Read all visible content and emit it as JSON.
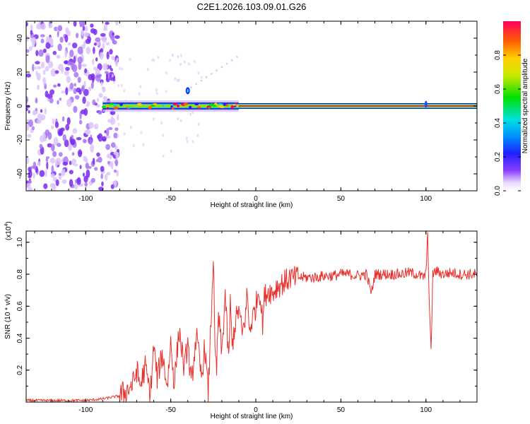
{
  "title": "C2E1.2026.103.09.01.G26",
  "chart_data": [
    {
      "type": "heatmap",
      "xlabel": "Height of straight line (km)",
      "ylabel": "Frequency (Hz)",
      "xlim": [
        -135,
        130
      ],
      "ylim": [
        -50,
        50
      ],
      "xticks": [
        -100,
        -50,
        0,
        50,
        100
      ],
      "yticks": [
        -40,
        -20,
        0,
        20,
        40
      ],
      "noise_region_x": [
        -135,
        -85
      ],
      "signal_line_x": [
        -90,
        130
      ],
      "signal_line_freq": 0,
      "colorbar": {
        "label": "Normalized spectral amplitude",
        "range": [
          0,
          1
        ],
        "ticks": [
          "0.0",
          "0.2",
          "0.4",
          "0.6",
          "0.8"
        ]
      }
    },
    {
      "type": "line",
      "xlabel": "Height of straight line (km)",
      "ylabel": "SNR (10 * v/v)",
      "yscale_label": "(x10",
      "yscale_exp": "4",
      "xlim": [
        -135,
        130
      ],
      "ylim": [
        0,
        1.07
      ],
      "xticks": [
        -100,
        -50,
        0,
        50,
        100
      ],
      "yticks": [
        "0.2",
        "0.4",
        "0.6",
        "0.8",
        "1.0"
      ],
      "color": "#e8322e",
      "series": [
        {
          "name": "SNR",
          "x": [
            -135,
            -120,
            -100,
            -90,
            -80,
            -75,
            -72,
            -70,
            -68,
            -65,
            -62,
            -60,
            -58,
            -55,
            -52,
            -50,
            -48,
            -45,
            -42,
            -40,
            -38,
            -35,
            -32,
            -30,
            -28,
            -26,
            -25,
            -24,
            -23,
            -22,
            -20,
            -18,
            -16,
            -15,
            -14,
            -12,
            -10,
            -8,
            -6,
            -5,
            -4,
            -2,
            0,
            2,
            4,
            5,
            6,
            8,
            10,
            12,
            15,
            18,
            20,
            22,
            25,
            30,
            35,
            40,
            45,
            50,
            55,
            60,
            65,
            68,
            70,
            75,
            80,
            85,
            90,
            95,
            98,
            100,
            101,
            102,
            103,
            104,
            106,
            110,
            115,
            120,
            125,
            130
          ],
          "y": [
            0.01,
            0.01,
            0.01,
            0.02,
            0.04,
            0.08,
            0.12,
            0.2,
            0.1,
            0.22,
            0.05,
            0.35,
            0.15,
            0.3,
            0.1,
            0.38,
            0.12,
            0.45,
            0.2,
            0.38,
            0.1,
            0.42,
            0.15,
            0.35,
            0.05,
            0.6,
            0.93,
            0.3,
            0.2,
            0.55,
            0.3,
            0.68,
            0.25,
            0.62,
            0.35,
            0.5,
            0.58,
            0.42,
            0.55,
            0.7,
            0.45,
            0.52,
            0.6,
            0.72,
            0.5,
            0.65,
            0.68,
            0.7,
            0.68,
            0.72,
            0.74,
            0.76,
            0.78,
            0.77,
            0.78,
            0.78,
            0.78,
            0.79,
            0.79,
            0.8,
            0.8,
            0.79,
            0.8,
            0.68,
            0.8,
            0.8,
            0.8,
            0.8,
            0.81,
            0.8,
            0.78,
            0.8,
            1.06,
            0.6,
            0.3,
            0.8,
            0.82,
            0.8,
            0.81,
            0.8,
            0.8,
            0.8
          ]
        }
      ]
    }
  ]
}
